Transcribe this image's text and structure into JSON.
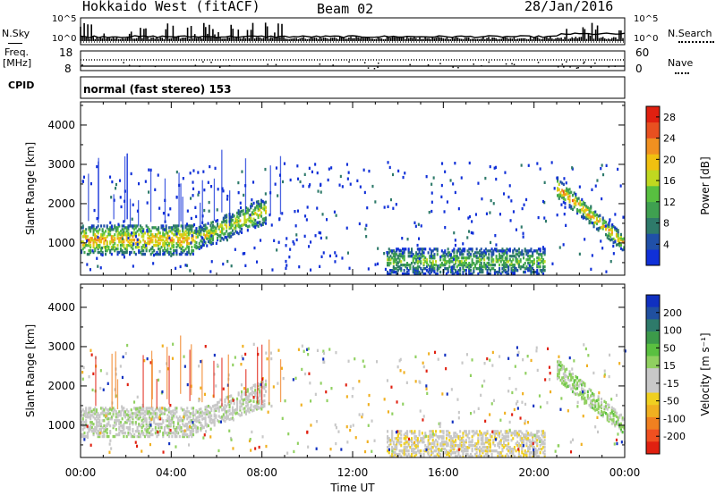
{
  "header": {
    "station": "Hokkaido West (fitACF)",
    "beam": "Beam 02",
    "date": "28/Jan/2016"
  },
  "noise_panel": {
    "left_label": "N.Sky",
    "right_label": "N.Search",
    "left_ticks": [
      "10^5",
      "10^0"
    ],
    "right_ticks": [
      "10^5",
      "10^0"
    ]
  },
  "freq_panel": {
    "left_label_1": "Freq.",
    "left_label_2": "[MHz]",
    "right_label": "Nave",
    "left_ticks": [
      "18",
      "8"
    ],
    "right_ticks": [
      "60",
      "0"
    ]
  },
  "cpid": {
    "label": "CPID",
    "mode": "normal (fast stereo) 153"
  },
  "chart_data": [
    {
      "type": "heatmap",
      "parameter": "Power",
      "ylabel": "Slant Range [km]",
      "xlabel": "Time UT",
      "x_ticks": [
        "00:00",
        "04:00",
        "08:00",
        "12:00",
        "16:00",
        "20:00",
        "00:00"
      ],
      "y_ticks": [
        1000,
        2000,
        3000,
        4000
      ],
      "ylim": [
        180,
        4590
      ],
      "xlim_hours": [
        0,
        24
      ],
      "colorbar": {
        "label": "Power [dB]",
        "ticks": [
          "4",
          "8",
          "12",
          "16",
          "20",
          "24",
          "28"
        ],
        "range": [
          0,
          30
        ],
        "colors": [
          "#1030d8",
          "#2050a8",
          "#2e7a6a",
          "#3fa050",
          "#58c040",
          "#c0d820",
          "#f0c010",
          "#f09020",
          "#e85020",
          "#e02010"
        ]
      },
      "echo_bands": [
        {
          "t0": 0.0,
          "t1": 5.0,
          "r0": 750,
          "r1": 1500,
          "peak_db": 22
        },
        {
          "t0": 5.0,
          "t1": 8.2,
          "r0": 850,
          "r1": 2100,
          "peak_db": 18
        },
        {
          "t0": 13.5,
          "t1": 20.5,
          "r0": 250,
          "r1": 900,
          "peak_db": 14
        },
        {
          "t0": 21.0,
          "t1": 24.0,
          "r0": 800,
          "r1": 2600,
          "peak_db": 22
        }
      ]
    },
    {
      "type": "heatmap",
      "parameter": "Velocity",
      "ylabel": "Slant Range [km]",
      "xlabel": "Time UT",
      "x_ticks": [
        "00:00",
        "04:00",
        "08:00",
        "12:00",
        "16:00",
        "20:00",
        "00:00"
      ],
      "y_ticks": [
        1000,
        2000,
        3000,
        4000
      ],
      "ylim": [
        180,
        4590
      ],
      "xlim_hours": [
        0,
        24
      ],
      "colorbar": {
        "label": "Velocity [m s⁻¹]",
        "ticks": [
          "200",
          "100",
          "50",
          "15",
          "-15",
          "-50",
          "-100",
          "-200"
        ],
        "range": [
          -250,
          250
        ],
        "colors": [
          "#1030c0",
          "#2050a0",
          "#2e7a6a",
          "#3c9a4a",
          "#5ac040",
          "#90d060",
          "#c8c8c8",
          "#c8c8c8",
          "#f0d020",
          "#f0b020",
          "#f08020",
          "#f05020",
          "#e02010"
        ]
      },
      "echo_bands": [
        {
          "t0": 0.0,
          "t1": 5.0,
          "r0": 750,
          "r1": 1500,
          "typical_vel": 0
        },
        {
          "t0": 5.0,
          "t1": 8.2,
          "r0": 850,
          "r1": 2100,
          "typical_vel": 0
        },
        {
          "t0": 13.5,
          "t1": 20.5,
          "r0": 250,
          "r1": 900,
          "typical_vel": -40
        },
        {
          "t0": 21.0,
          "t1": 24.0,
          "r0": 800,
          "r1": 2600,
          "typical_vel": 30
        }
      ]
    }
  ]
}
